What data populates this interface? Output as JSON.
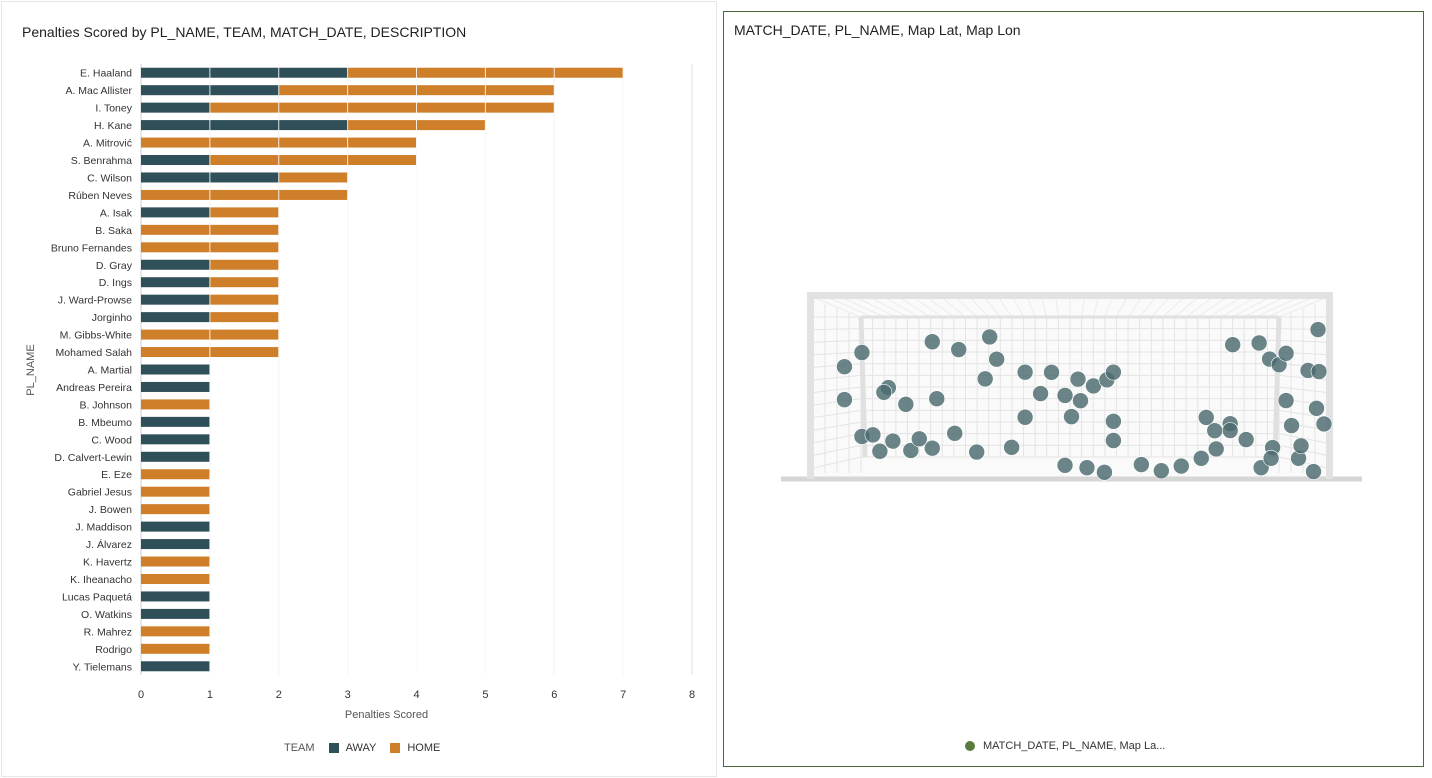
{
  "bar_panel": {
    "title": "Penalties Scored by PL_NAME, TEAM, MATCH_DATE, DESCRIPTION",
    "legend_title": "TEAM"
  },
  "map_panel": {
    "title": "MATCH_DATE, PL_NAME, Map Lat, Map Lon",
    "legend_label": "MATCH_DATE, PL_NAME, Map La...",
    "legend_color": "#5a7a3e"
  },
  "colors": {
    "away": "#2f4f59",
    "home": "#cf7f2a",
    "grid": "#e2e2e2",
    "dot": "#4b6a6f"
  },
  "chart_data": [
    {
      "type": "bar",
      "orientation": "horizontal",
      "stacked": true,
      "xlabel": "Penalties Scored",
      "ylabel": "PL_NAME",
      "xlim": [
        0,
        8
      ],
      "xticks": [
        0,
        1,
        2,
        3,
        4,
        5,
        6,
        7,
        8
      ],
      "legend_position": "bottom",
      "grid": true,
      "categories": [
        "E. Haaland",
        "A. Mac Allister",
        "I. Toney",
        "H. Kane",
        "A. Mitrović",
        "S. Benrahma",
        "C. Wilson",
        "Rúben Neves",
        "A. Isak",
        "B. Saka",
        "Bruno Fernandes",
        "D. Gray",
        "D. Ings",
        "J. Ward-Prowse",
        "Jorginho",
        "M. Gibbs-White",
        "Mohamed Salah",
        "A. Martial",
        "Andreas Pereira",
        "B. Johnson",
        "B. Mbeumo",
        "C. Wood",
        "D. Calvert-Lewin",
        "E. Eze",
        "Gabriel Jesus",
        "J. Bowen",
        "J. Maddison",
        "J. Álvarez",
        "K. Havertz",
        "K. Iheanacho",
        "Lucas Paquetá",
        "O. Watkins",
        "R. Mahrez",
        "Rodrigo",
        "Y. Tielemans"
      ],
      "series": [
        {
          "name": "AWAY",
          "values": [
            3,
            2,
            1,
            3,
            0,
            1,
            2,
            0,
            1,
            0,
            0,
            1,
            1,
            1,
            1,
            0,
            0,
            1,
            1,
            0,
            1,
            1,
            1,
            0,
            0,
            0,
            1,
            1,
            0,
            0,
            1,
            1,
            0,
            0,
            1
          ]
        },
        {
          "name": "HOME",
          "values": [
            4,
            4,
            5,
            2,
            4,
            3,
            1,
            3,
            1,
            2,
            2,
            1,
            1,
            1,
            1,
            2,
            2,
            0,
            0,
            1,
            0,
            0,
            0,
            1,
            1,
            1,
            0,
            0,
            1,
            1,
            0,
            0,
            1,
            1,
            0
          ]
        }
      ]
    },
    {
      "type": "scatter",
      "background": "football goal net",
      "x_unit": "Map Lon",
      "y_unit": "Map Lat",
      "points": [
        [
          0.045,
          0.293
        ],
        [
          0.08,
          0.202
        ],
        [
          0.045,
          0.504
        ],
        [
          0.133,
          0.427
        ],
        [
          0.124,
          0.457
        ],
        [
          0.168,
          0.534
        ],
        [
          0.221,
          0.133
        ],
        [
          0.274,
          0.183
        ],
        [
          0.336,
          0.102
        ],
        [
          0.35,
          0.245
        ],
        [
          0.327,
          0.371
        ],
        [
          0.23,
          0.498
        ],
        [
          0.407,
          0.328
        ],
        [
          0.46,
          0.329
        ],
        [
          0.438,
          0.465
        ],
        [
          0.407,
          0.617
        ],
        [
          0.487,
          0.477
        ],
        [
          0.518,
          0.511
        ],
        [
          0.513,
          0.373
        ],
        [
          0.544,
          0.416
        ],
        [
          0.571,
          0.377
        ],
        [
          0.584,
          0.328
        ],
        [
          0.584,
          0.643
        ],
        [
          0.584,
          0.766
        ],
        [
          0.5,
          0.613
        ],
        [
          0.77,
          0.618
        ],
        [
          0.787,
          0.703
        ],
        [
          0.818,
          0.658
        ],
        [
          0.818,
          0.702
        ],
        [
          0.823,
          0.152
        ],
        [
          0.876,
          0.141
        ],
        [
          0.897,
          0.244
        ],
        [
          0.916,
          0.28
        ],
        [
          0.93,
          0.207
        ],
        [
          0.93,
          0.51
        ],
        [
          0.974,
          0.317
        ],
        [
          0.996,
          0.324
        ],
        [
          0.903,
          0.811
        ],
        [
          0.955,
          0.88
        ],
        [
          0.991,
          0.56
        ],
        [
          1.006,
          0.66
        ],
        [
          0.941,
          0.67
        ],
        [
          0.994,
          0.055
        ],
        [
          0.08,
          0.74
        ],
        [
          0.102,
          0.73
        ],
        [
          0.116,
          0.835
        ],
        [
          0.142,
          0.77
        ],
        [
          0.178,
          0.83
        ],
        [
          0.195,
          0.755
        ],
        [
          0.221,
          0.815
        ],
        [
          0.266,
          0.72
        ],
        [
          0.31,
          0.84
        ],
        [
          0.38,
          0.81
        ],
        [
          0.487,
          0.925
        ],
        [
          0.531,
          0.94
        ],
        [
          0.566,
          0.97
        ],
        [
          0.64,
          0.92
        ],
        [
          0.68,
          0.96
        ],
        [
          0.72,
          0.93
        ],
        [
          0.76,
          0.88
        ],
        [
          0.79,
          0.82
        ],
        [
          0.85,
          0.76
        ],
        [
          0.88,
          0.94
        ],
        [
          0.9,
          0.88
        ],
        [
          0.96,
          0.8
        ],
        [
          0.985,
          0.965
        ]
      ]
    }
  ]
}
